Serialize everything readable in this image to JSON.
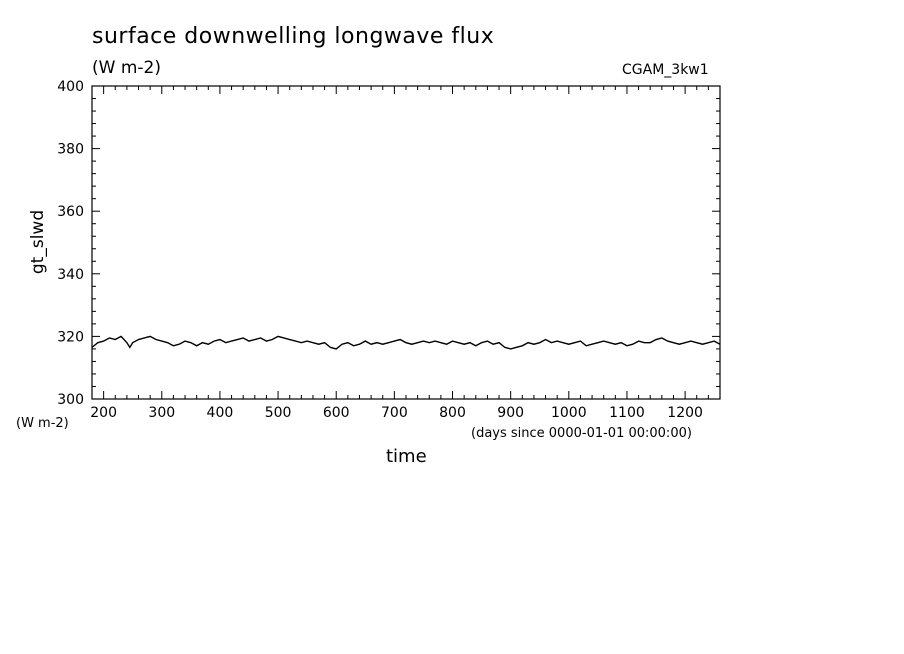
{
  "chart_data": {
    "type": "line",
    "title": "surface downwelling longwave flux",
    "subtitle": "(W m-2)",
    "run_label": "CGAM_3kw1",
    "ylabel": "gt_slwd",
    "yunit": "(W m-2)",
    "xlabel": "time",
    "xunit": "(days since 0000-01-01 00:00:00)",
    "xlim": [
      180,
      1260
    ],
    "ylim": [
      300,
      400
    ],
    "xticks": [
      200,
      300,
      400,
      500,
      600,
      700,
      800,
      900,
      1000,
      1100,
      1200
    ],
    "yticks": [
      300,
      320,
      340,
      360,
      380,
      400
    ],
    "grid": false,
    "series": [
      {
        "x": [
          180,
          190,
          200,
          210,
          220,
          230,
          240,
          245,
          250,
          260,
          270,
          280,
          290,
          300,
          310,
          320,
          330,
          340,
          350,
          360,
          370,
          380,
          390,
          400,
          410,
          420,
          430,
          440,
          450,
          460,
          470,
          480,
          490,
          500,
          510,
          520,
          530,
          540,
          550,
          560,
          570,
          580,
          590,
          600,
          610,
          620,
          630,
          640,
          650,
          660,
          670,
          680,
          690,
          700,
          710,
          720,
          730,
          740,
          750,
          760,
          770,
          780,
          790,
          800,
          810,
          820,
          830,
          840,
          850,
          860,
          870,
          880,
          890,
          900,
          910,
          920,
          930,
          940,
          950,
          960,
          970,
          980,
          990,
          1000,
          1010,
          1020,
          1030,
          1040,
          1050,
          1060,
          1070,
          1080,
          1090,
          1100,
          1110,
          1120,
          1130,
          1140,
          1150,
          1160,
          1170,
          1180,
          1190,
          1200,
          1210,
          1220,
          1230,
          1240,
          1250,
          1260
        ],
        "values": [
          316.5,
          318.0,
          318.5,
          319.5,
          319.0,
          320.0,
          318.0,
          316.5,
          318.0,
          319.0,
          319.5,
          320.0,
          319.0,
          318.5,
          318.0,
          317.0,
          317.5,
          318.5,
          318.0,
          317.0,
          318.0,
          317.5,
          318.5,
          319.0,
          318.0,
          318.5,
          319.0,
          319.5,
          318.5,
          319.0,
          319.5,
          318.5,
          319.0,
          320.0,
          319.5,
          319.0,
          318.5,
          318.0,
          318.5,
          318.0,
          317.5,
          318.0,
          316.5,
          316.0,
          317.5,
          318.0,
          317.0,
          317.5,
          318.5,
          317.5,
          318.0,
          317.5,
          318.0,
          318.5,
          319.0,
          318.0,
          317.5,
          318.0,
          318.5,
          318.0,
          318.5,
          318.0,
          317.5,
          318.5,
          318.0,
          317.5,
          318.0,
          317.0,
          318.0,
          318.5,
          317.5,
          318.0,
          316.5,
          316.0,
          316.5,
          317.0,
          318.0,
          317.5,
          318.0,
          319.0,
          318.0,
          318.5,
          318.0,
          317.5,
          318.0,
          318.5,
          317.0,
          317.5,
          318.0,
          318.5,
          318.0,
          317.5,
          318.0,
          317.0,
          317.5,
          318.5,
          318.0,
          318.0,
          319.0,
          319.5,
          318.5,
          318.0,
          317.5,
          318.0,
          318.5,
          318.0,
          317.5,
          318.0,
          318.5,
          317.5
        ]
      }
    ],
    "line_color": "#000000"
  }
}
